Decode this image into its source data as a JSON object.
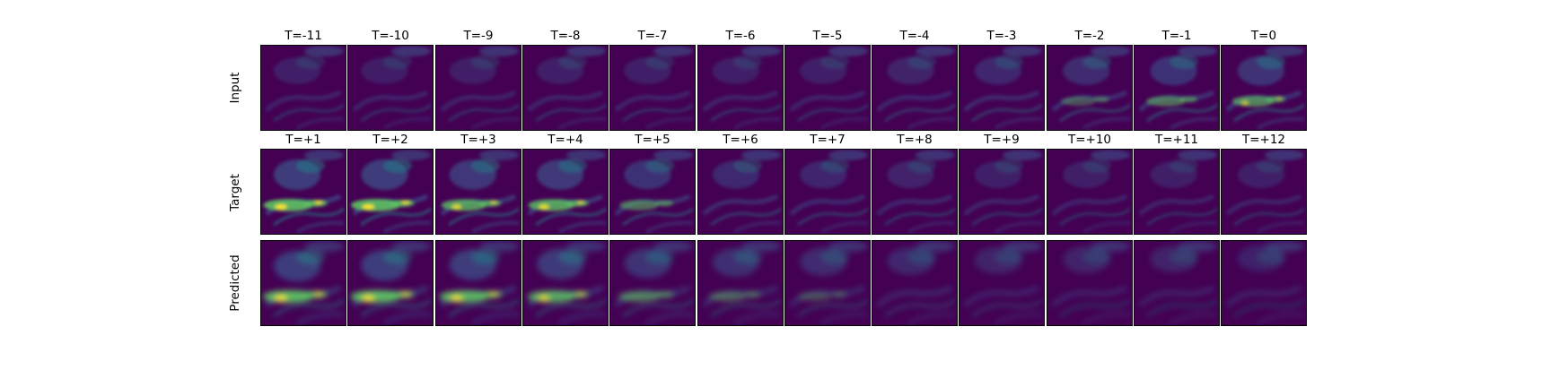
{
  "colormap": {
    "low": "#440154",
    "midlow": "#3b528b",
    "mid": "#21918c",
    "high": "#5ec962",
    "peak": "#fde725"
  },
  "rows": [
    {
      "label": "Input",
      "panels": [
        {
          "title": "T=-11",
          "intensity": 0.18
        },
        {
          "title": "T=-10",
          "intensity": 0.16
        },
        {
          "title": "T=-9",
          "intensity": 0.17
        },
        {
          "title": "T=-8",
          "intensity": 0.19
        },
        {
          "title": "T=-7",
          "intensity": 0.2
        },
        {
          "title": "T=-6",
          "intensity": 0.18
        },
        {
          "title": "T=-5",
          "intensity": 0.2
        },
        {
          "title": "T=-4",
          "intensity": 0.28
        },
        {
          "title": "T=-3",
          "intensity": 0.34
        },
        {
          "title": "T=-2",
          "intensity": 0.45
        },
        {
          "title": "T=-1",
          "intensity": 0.55
        },
        {
          "title": "T=0",
          "intensity": 0.62
        }
      ]
    },
    {
      "label": "Target",
      "panels": [
        {
          "title": "T=+1",
          "intensity": 0.78
        },
        {
          "title": "T=+2",
          "intensity": 0.78
        },
        {
          "title": "T=+3",
          "intensity": 0.7
        },
        {
          "title": "T=+4",
          "intensity": 0.72
        },
        {
          "title": "T=+5",
          "intensity": 0.55
        },
        {
          "title": "T=+6",
          "intensity": 0.4
        },
        {
          "title": "T=+7",
          "intensity": 0.32
        },
        {
          "title": "T=+8",
          "intensity": 0.26
        },
        {
          "title": "T=+9",
          "intensity": 0.22
        },
        {
          "title": "T=+10",
          "intensity": 0.2
        },
        {
          "title": "T=+11",
          "intensity": 0.18
        },
        {
          "title": "T=+12",
          "intensity": 0.18
        }
      ]
    },
    {
      "label": "Predicted",
      "panels": [
        {
          "intensity": 0.8
        },
        {
          "intensity": 0.8
        },
        {
          "intensity": 0.78
        },
        {
          "intensity": 0.74
        },
        {
          "intensity": 0.6
        },
        {
          "intensity": 0.5
        },
        {
          "intensity": 0.42
        },
        {
          "intensity": 0.34
        },
        {
          "intensity": 0.28
        },
        {
          "intensity": 0.26
        },
        {
          "intensity": 0.25
        },
        {
          "intensity": 0.24
        }
      ]
    }
  ]
}
